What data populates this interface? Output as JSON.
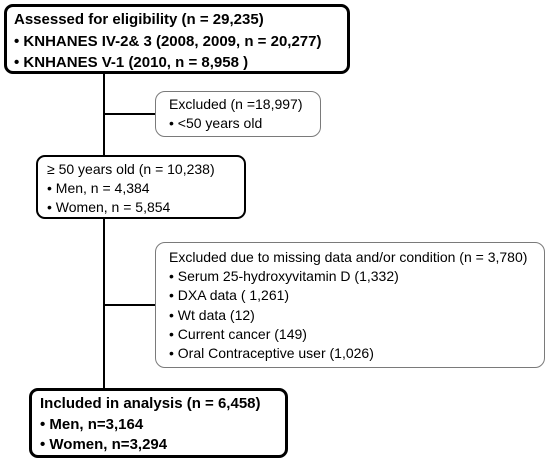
{
  "flowchart": {
    "assessed": {
      "title": "Assessed for eligibility (n = 29,235)",
      "items": [
        "• KNHANES IV-2& 3 (2008, 2009, n = 20,277)",
        "• KNHANES V-1  (2010, n = 8,958 )"
      ]
    },
    "excluded_age": {
      "title": "Excluded  (n =18,997)",
      "items": [
        "• <50 years old"
      ]
    },
    "eligible": {
      "title": "≥ 50 years old (n = 10,238)",
      "items": [
        "• Men, n = 4,384",
        "• Women, n = 5,854"
      ]
    },
    "excluded_missing": {
      "title": "Excluded due to missing data and/or condition (n = 3,780)",
      "items": [
        "• Serum 25-hydroxyvitamin  D  (1,332)",
        "• DXA data ( 1,261)",
        "• Wt data (12)",
        "• Current cancer (149)",
        "• Oral Contraceptive user (1,026)"
      ]
    },
    "included": {
      "title": "Included in analysis (n = 6,458)",
      "items": [
        "• Men, n=3,164",
        "• Women, n=3,294"
      ]
    }
  }
}
